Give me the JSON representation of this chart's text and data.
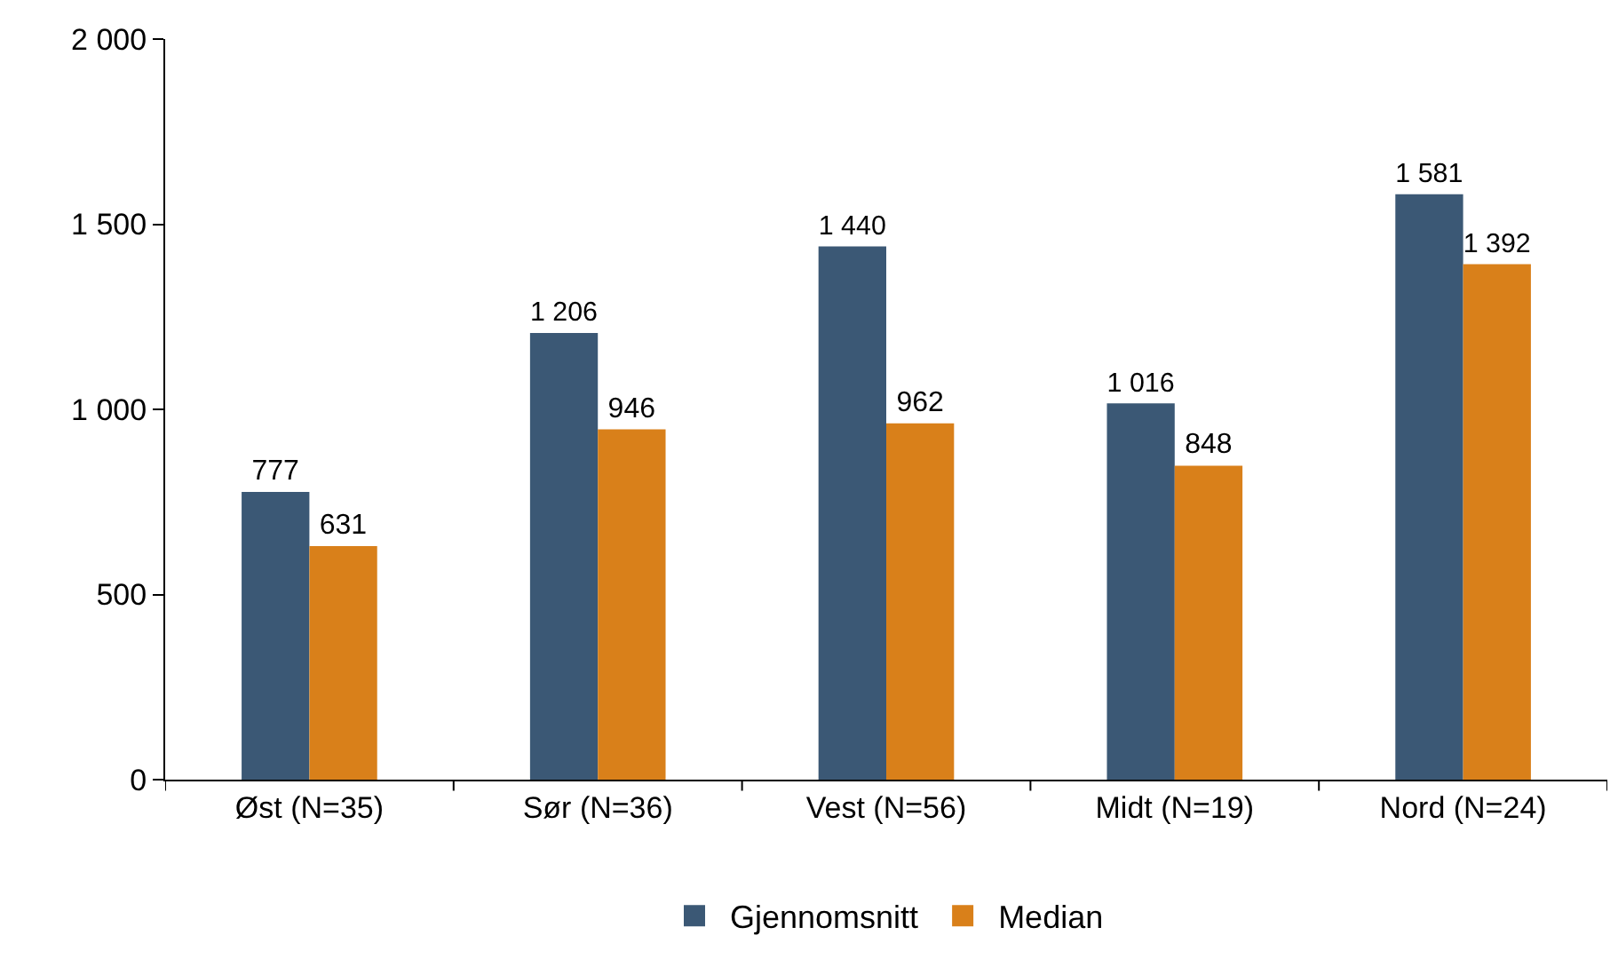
{
  "chart_data": {
    "type": "bar",
    "categories": [
      "Øst (N=35)",
      "Sør (N=36)",
      "Vest (N=56)",
      "Midt (N=19)",
      "Nord (N=24)"
    ],
    "series": [
      {
        "name": "Gjennomsnitt",
        "color": "#3b5875",
        "values": [
          777,
          1206,
          1440,
          1016,
          1581
        ],
        "value_labels": [
          "777",
          "1 206",
          "1 440",
          "1 016",
          "1 581"
        ]
      },
      {
        "name": "Median",
        "color": "#d9801a",
        "values": [
          631,
          946,
          962,
          848,
          1392
        ],
        "value_labels": [
          "631",
          "946",
          "962",
          "848",
          "1 392"
        ]
      }
    ],
    "ylim": [
      0,
      2000
    ],
    "yticks": [
      0,
      {
        "value": 500,
        "label": "500"
      },
      {
        "value": 1000,
        "label": "1 000"
      },
      {
        "value": 1500,
        "label": "1 500"
      },
      {
        "value": 2000,
        "label": "2 000"
      }
    ],
    "legend": "bottom"
  }
}
